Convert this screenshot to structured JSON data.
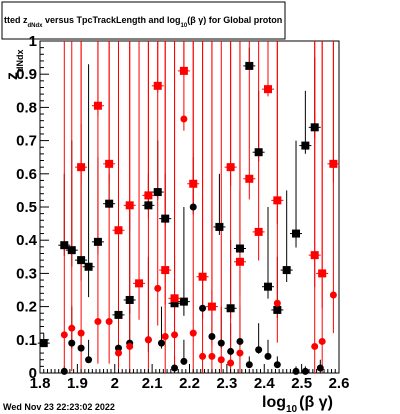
{
  "title": "tted  z_{dNdx} versus TpcTrackLength and log_{10}(βγ) for Global proton",
  "title_parts": {
    "pre": "tted  z",
    "pre_sub": "dNdx",
    "mid": " versus TpcTrackLength and log",
    "mid_sub": "10",
    "post": "(β γ) for Global proton"
  },
  "date_label": "Wed Nov 23 22:23:02 2022",
  "chart_data": {
    "type": "scatter",
    "xlabel": "log_{10}(β γ)",
    "xlabel_parts": {
      "base": "log",
      "sub": "10",
      "rest": "(β γ)"
    },
    "ylabel": "z_{dNdx}",
    "ylabel_parts": {
      "base": "z",
      "sub": "dNdx"
    },
    "xlim": [
      1.8,
      2.6
    ],
    "ylim": [
      0,
      1
    ],
    "x_tick_labels": [
      "1.8",
      "1.9",
      "2",
      "2.1",
      "2.2",
      "2.3",
      "2.4",
      "2.5",
      "2.6"
    ],
    "x_tick_values": [
      1.8,
      1.9,
      2.0,
      2.1,
      2.2,
      2.3,
      2.4,
      2.5,
      2.6
    ],
    "y_tick_labels": [
      "0",
      "0.1",
      "0.2",
      "0.3",
      "0.4",
      "0.5",
      "0.6",
      "0.7",
      "0.8",
      "0.9",
      "1"
    ],
    "y_tick_values": [
      0,
      0.1,
      0.2,
      0.3,
      0.4,
      0.5,
      0.6,
      0.7,
      0.8,
      0.9,
      1.0
    ],
    "grid": false,
    "colors": {
      "black_series": "#000000",
      "red_series": "#ff0000"
    },
    "series": [
      {
        "color": "black",
        "markers": [
          {
            "x": 1.81,
            "y": 0.09,
            "s": "square",
            "top": 0.12
          },
          {
            "x": 1.865,
            "y": 0.385,
            "s": "square",
            "top": 0.6
          },
          {
            "x": 1.865,
            "y": 0.005,
            "s": "circle",
            "top": 0.02
          },
          {
            "x": 1.885,
            "y": 0.37,
            "s": "square",
            "top": 0.7
          },
          {
            "x": 1.885,
            "y": 0.09,
            "s": "circle",
            "top": 0.2
          },
          {
            "x": 1.91,
            "y": 0.34,
            "s": "square",
            "top": 0.75
          },
          {
            "x": 1.91,
            "y": 0.075,
            "s": "circle",
            "top": 0.12
          },
          {
            "x": 1.93,
            "y": 0.32,
            "s": "square",
            "top": 0.93
          },
          {
            "x": 1.93,
            "y": 0.04,
            "s": "circle",
            "top": 0.1
          },
          {
            "x": 1.955,
            "y": 0.395,
            "s": "square",
            "top": 0.65
          },
          {
            "x": 1.985,
            "y": 0.51,
            "s": "square",
            "top": 0.6
          },
          {
            "x": 2.01,
            "y": 0.175,
            "s": "square",
            "top": 0.4
          },
          {
            "x": 2.01,
            "y": 0.075,
            "s": "circle",
            "top": 0.25
          },
          {
            "x": 2.04,
            "y": 0.22,
            "s": "square",
            "top": 0.5
          },
          {
            "x": 2.04,
            "y": 0.09,
            "s": "circle",
            "top": 0.2
          },
          {
            "x": 2.09,
            "y": 0.505,
            "s": "square",
            "top": 0.6
          },
          {
            "x": 2.09,
            "y": 0.1,
            "s": "circle",
            "top": 0.35
          },
          {
            "x": 2.115,
            "y": 0.545,
            "s": "square",
            "top": 0.7
          },
          {
            "x": 2.125,
            "y": 0.09,
            "s": "circle",
            "top": 0.2
          },
          {
            "x": 2.135,
            "y": 0.465,
            "s": "square",
            "top": 0.6
          },
          {
            "x": 2.16,
            "y": 0.21,
            "s": "square",
            "top": 0.35
          },
          {
            "x": 2.16,
            "y": 0.015,
            "s": "circle",
            "top": 0.05
          },
          {
            "x": 2.185,
            "y": 0.215,
            "s": "square",
            "top": 0.5
          },
          {
            "x": 2.185,
            "y": 0.035,
            "s": "circle",
            "top": 0.1
          },
          {
            "x": 2.21,
            "y": 0.5,
            "s": "circle",
            "top": 0.65
          },
          {
            "x": 2.235,
            "y": 0.195,
            "s": "circle",
            "top": 0.4
          },
          {
            "x": 2.26,
            "y": 0.11,
            "s": "circle",
            "top": 0.25
          },
          {
            "x": 2.28,
            "y": 0.44,
            "s": "square",
            "top": 0.6
          },
          {
            "x": 2.285,
            "y": 0.09,
            "s": "circle",
            "top": 0.2
          },
          {
            "x": 2.31,
            "y": 0.195,
            "s": "square",
            "top": 0.4
          },
          {
            "x": 2.31,
            "y": 0.065,
            "s": "circle",
            "top": 0.15
          },
          {
            "x": 2.335,
            "y": 0.375,
            "s": "square",
            "top": 0.55
          },
          {
            "x": 2.335,
            "y": 0.095,
            "s": "circle",
            "top": 0.2
          },
          {
            "x": 2.36,
            "y": 0.925,
            "s": "square",
            "top": 0.98
          },
          {
            "x": 2.36,
            "y": 0.025,
            "s": "circle",
            "top": 0.05
          },
          {
            "x": 2.385,
            "y": 0.665,
            "s": "square",
            "top": 0.85
          },
          {
            "x": 2.385,
            "y": 0.07,
            "s": "circle",
            "top": 0.15
          },
          {
            "x": 2.41,
            "y": 0.26,
            "s": "square",
            "top": 0.5
          },
          {
            "x": 2.41,
            "y": 0.05,
            "s": "circle",
            "top": 0.1
          },
          {
            "x": 2.435,
            "y": 0.19,
            "s": "square",
            "top": 0.35
          },
          {
            "x": 2.435,
            "y": 0.025,
            "s": "circle",
            "top": 0.05
          },
          {
            "x": 2.46,
            "y": 0.31,
            "s": "square",
            "top": 0.55
          },
          {
            "x": 2.485,
            "y": 0.42,
            "s": "square",
            "top": 0.7
          },
          {
            "x": 2.485,
            "y": 0.005,
            "s": "circle",
            "top": 0.02
          },
          {
            "x": 2.51,
            "y": 0.685,
            "s": "square",
            "top": 0.85
          },
          {
            "x": 2.51,
            "y": 0.005,
            "s": "circle",
            "top": 0.02
          },
          {
            "x": 2.535,
            "y": 0.74,
            "s": "square",
            "top": 0.95
          },
          {
            "x": 2.55,
            "y": 0.015,
            "s": "circle",
            "top": 0.04
          }
        ]
      },
      {
        "color": "red",
        "markers": [
          {
            "x": 1.865,
            "y": 0.115,
            "s": "circle",
            "top": 1.0
          },
          {
            "x": 1.885,
            "y": 0.135,
            "s": "circle",
            "top": 1.0
          },
          {
            "x": 1.91,
            "y": 0.62,
            "s": "square",
            "top": 1.0
          },
          {
            "x": 1.91,
            "y": 0.12,
            "s": "circle",
            "top": 1.0
          },
          {
            "x": 1.955,
            "y": 0.805,
            "s": "square",
            "top": 1.0
          },
          {
            "x": 1.955,
            "y": 0.155,
            "s": "circle",
            "top": 1.0
          },
          {
            "x": 1.985,
            "y": 0.63,
            "s": "square",
            "top": 1.0
          },
          {
            "x": 1.985,
            "y": 0.155,
            "s": "circle",
            "top": 1.0
          },
          {
            "x": 2.01,
            "y": 0.43,
            "s": "square",
            "top": 1.0
          },
          {
            "x": 2.01,
            "y": 0.06,
            "s": "circle",
            "top": 1.0
          },
          {
            "x": 2.04,
            "y": 0.505,
            "s": "square",
            "top": 1.0
          },
          {
            "x": 2.04,
            "y": 0.08,
            "s": "circle",
            "top": 1.0
          },
          {
            "x": 2.065,
            "y": 0.27,
            "s": "square",
            "top": 1.0
          },
          {
            "x": 2.09,
            "y": 0.535,
            "s": "square",
            "top": 1.0
          },
          {
            "x": 2.09,
            "y": 0.1,
            "s": "circle",
            "top": 1.0
          },
          {
            "x": 2.115,
            "y": 0.865,
            "s": "square",
            "top": 1.0
          },
          {
            "x": 2.115,
            "y": 0.255,
            "s": "circle",
            "top": 1.0
          },
          {
            "x": 2.135,
            "y": 0.31,
            "s": "square",
            "top": 1.0
          },
          {
            "x": 2.135,
            "y": 0.11,
            "s": "circle",
            "top": 1.0
          },
          {
            "x": 2.16,
            "y": 0.225,
            "s": "square",
            "top": 1.0
          },
          {
            "x": 2.16,
            "y": 0.115,
            "s": "circle",
            "top": 1.0
          },
          {
            "x": 2.185,
            "y": 0.91,
            "s": "square",
            "top": 1.0
          },
          {
            "x": 2.185,
            "y": 0.765,
            "s": "circle",
            "top": 1.0
          },
          {
            "x": 2.21,
            "y": 0.57,
            "s": "square",
            "top": 1.0
          },
          {
            "x": 2.21,
            "y": 0.12,
            "s": "circle",
            "top": 1.0
          },
          {
            "x": 2.235,
            "y": 0.29,
            "s": "square",
            "top": 1.0
          },
          {
            "x": 2.235,
            "y": 0.05,
            "s": "circle",
            "top": 1.0
          },
          {
            "x": 2.26,
            "y": 0.2,
            "s": "square",
            "top": 1.0
          },
          {
            "x": 2.26,
            "y": 0.05,
            "s": "circle",
            "top": 1.0
          },
          {
            "x": 2.285,
            "y": 0.04,
            "s": "circle",
            "top": 1.0
          },
          {
            "x": 2.31,
            "y": 0.62,
            "s": "square",
            "top": 1.0
          },
          {
            "x": 2.31,
            "y": 0.03,
            "s": "circle",
            "top": 1.0
          },
          {
            "x": 2.335,
            "y": 0.335,
            "s": "square",
            "top": 1.0
          },
          {
            "x": 2.335,
            "y": 0.06,
            "s": "circle",
            "top": 1.0
          },
          {
            "x": 2.36,
            "y": 0.585,
            "s": "square",
            "top": 1.0
          },
          {
            "x": 2.385,
            "y": 0.425,
            "s": "square",
            "top": 1.0
          },
          {
            "x": 2.41,
            "y": 0.855,
            "s": "square",
            "top": 1.0
          },
          {
            "x": 2.435,
            "y": 0.52,
            "s": "square",
            "top": 1.0
          },
          {
            "x": 2.435,
            "y": 0.21,
            "s": "circle",
            "top": 1.0
          },
          {
            "x": 2.535,
            "y": 0.355,
            "s": "square",
            "top": 1.0
          },
          {
            "x": 2.535,
            "y": 0.08,
            "s": "circle",
            "top": 1.0
          },
          {
            "x": 2.555,
            "y": 0.3,
            "s": "square",
            "top": 1.0
          },
          {
            "x": 2.555,
            "y": 0.095,
            "s": "circle",
            "top": 1.0
          },
          {
            "x": 2.585,
            "y": 0.63,
            "s": "square",
            "top": 1.0
          },
          {
            "x": 2.585,
            "y": 0.235,
            "s": "circle",
            "top": 1.0
          }
        ]
      }
    ]
  }
}
